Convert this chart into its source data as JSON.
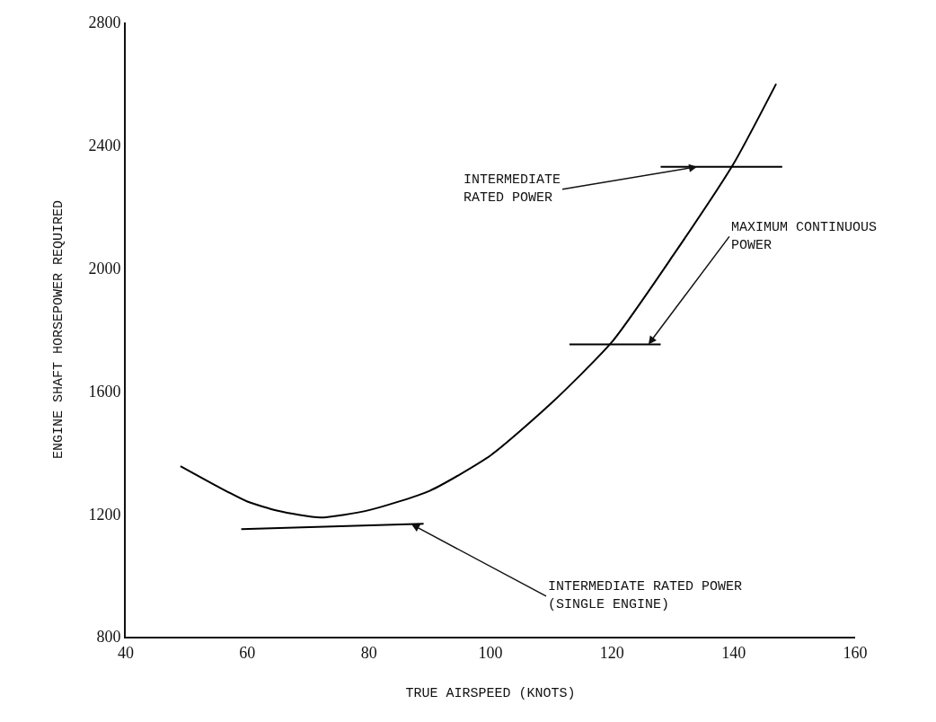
{
  "chart_data": {
    "type": "line",
    "xlabel": "TRUE AIRSPEED (KNOTS)",
    "ylabel": "ENGINE SHAFT HORSEPOWER REQUIRED",
    "xlim": [
      40,
      160
    ],
    "xticks": [
      40,
      60,
      80,
      100,
      120,
      140,
      160
    ],
    "ylim": [
      800,
      2800
    ],
    "yticks": [
      800,
      1200,
      1600,
      2000,
      2400,
      2800
    ],
    "marker": "none",
    "line_style": "solid",
    "series": [
      {
        "color": "#000000",
        "x": [
          49,
          55,
          60,
          65,
          72,
          80,
          90,
          100,
          110,
          120,
          130,
          140,
          147
        ],
        "values": [
          1355,
          1290,
          1240,
          1210,
          1188,
          1212,
          1275,
          1390,
          1560,
          1760,
          2040,
          2340,
          2600
        ]
      },
      {
        "color": "#000000",
        "x": [
          128,
          148
        ],
        "values": [
          2330,
          2330
        ]
      },
      {
        "color": "#000000",
        "x": [
          113,
          128
        ],
        "values": [
          1752,
          1752
        ]
      },
      {
        "color": "#000000",
        "x": [
          59,
          89
        ],
        "values": [
          1150,
          1168
        ]
      }
    ],
    "annotations": [
      {
        "text": "INTERMEDIATE\nRATED POWER",
        "x": 134,
        "y": 2330
      },
      {
        "text": "MAXIMUM CONTINUOUS\nPOWER",
        "x": 126,
        "y": 1752
      },
      {
        "text": "INTERMEDIATE RATED POWER\n(SINGLE ENGINE)",
        "x": 87,
        "y": 1166
      }
    ]
  }
}
